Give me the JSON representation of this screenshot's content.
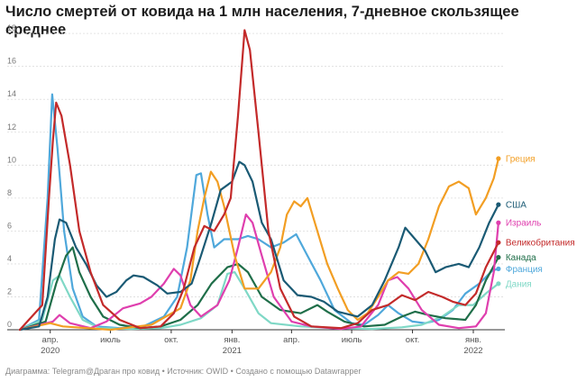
{
  "title": "Число смертей от ковида на 1 млн населения, 7-дневное скользящее среднее",
  "footer": "Диаграмма: Telegram@Драган про ковид • Источник: OWID • Создано с помощью Datawrapper",
  "chart_data": {
    "type": "line",
    "title": "Число смертей от ковида на 1 млн населения, 7-дневное скользящее среднее",
    "xlabel": "",
    "ylabel": "",
    "x_range": [
      "2020-02-15",
      "2022-02-15"
    ],
    "ylim": [
      0,
      18.5
    ],
    "y_ticks": [
      0,
      2,
      4,
      6,
      8,
      10,
      12,
      14,
      16,
      18
    ],
    "x_ticks": [
      {
        "date": "2020-04-01",
        "label": "апр.",
        "year": "2020"
      },
      {
        "date": "2020-07-01",
        "label": "июль",
        "year": ""
      },
      {
        "date": "2020-10-01",
        "label": "окт.",
        "year": ""
      },
      {
        "date": "2021-01-01",
        "label": "янв.",
        "year": "2021"
      },
      {
        "date": "2021-04-01",
        "label": "апр.",
        "year": ""
      },
      {
        "date": "2021-07-01",
        "label": "июль",
        "year": ""
      },
      {
        "date": "2021-10-01",
        "label": "окт.",
        "year": ""
      },
      {
        "date": "2022-01-01",
        "label": "янв.",
        "year": "2022"
      }
    ],
    "grid": true,
    "legend": "direct labels at line ends (right)",
    "series": [
      {
        "name": "Франция",
        "color": "#4fa8db",
        "end_label_value": 3.7,
        "points": [
          [
            "2020-02-15",
            0
          ],
          [
            "2020-03-15",
            0.6
          ],
          [
            "2020-03-28",
            8
          ],
          [
            "2020-04-04",
            14.3
          ],
          [
            "2020-04-12",
            11
          ],
          [
            "2020-04-22",
            6
          ],
          [
            "2020-05-05",
            2.5
          ],
          [
            "2020-05-20",
            0.8
          ],
          [
            "2020-06-10",
            0.2
          ],
          [
            "2020-07-15",
            0.1
          ],
          [
            "2020-08-20",
            0.2
          ],
          [
            "2020-09-20",
            0.8
          ],
          [
            "2020-10-10",
            2
          ],
          [
            "2020-10-25",
            5
          ],
          [
            "2020-11-08",
            9.4
          ],
          [
            "2020-11-15",
            9.5
          ],
          [
            "2020-11-25",
            7
          ],
          [
            "2020-12-05",
            5
          ],
          [
            "2020-12-20",
            5.5
          ],
          [
            "2021-01-10",
            5.5
          ],
          [
            "2021-01-25",
            5.7
          ],
          [
            "2021-02-10",
            5.5
          ],
          [
            "2021-03-01",
            5
          ],
          [
            "2021-03-20",
            5.3
          ],
          [
            "2021-04-08",
            5.8
          ],
          [
            "2021-04-25",
            4.5
          ],
          [
            "2021-05-15",
            3
          ],
          [
            "2021-06-05",
            1.2
          ],
          [
            "2021-07-01",
            0.4
          ],
          [
            "2021-07-20",
            0.3
          ],
          [
            "2021-08-10",
            0.9
          ],
          [
            "2021-08-25",
            1.5
          ],
          [
            "2021-09-10",
            1
          ],
          [
            "2021-10-01",
            0.5
          ],
          [
            "2021-10-20",
            0.4
          ],
          [
            "2021-11-10",
            0.6
          ],
          [
            "2021-12-01",
            1.2
          ],
          [
            "2021-12-20",
            2.2
          ],
          [
            "2022-01-10",
            2.8
          ],
          [
            "2022-01-30",
            3.6
          ],
          [
            "2022-02-08",
            3.7
          ]
        ]
      },
      {
        "name": "Дания",
        "color": "#7fd8c6",
        "end_label_value": 2.8,
        "points": [
          [
            "2020-02-15",
            0
          ],
          [
            "2020-03-20",
            0.6
          ],
          [
            "2020-04-05",
            3
          ],
          [
            "2020-04-15",
            3.3
          ],
          [
            "2020-05-01",
            2
          ],
          [
            "2020-05-20",
            0.6
          ],
          [
            "2020-06-15",
            0.1
          ],
          [
            "2020-08-01",
            0.05
          ],
          [
            "2020-09-15",
            0.1
          ],
          [
            "2020-10-15",
            0.3
          ],
          [
            "2020-11-15",
            0.7
          ],
          [
            "2020-12-10",
            1.5
          ],
          [
            "2020-12-25",
            3.4
          ],
          [
            "2021-01-05",
            3.5
          ],
          [
            "2021-01-20",
            2.5
          ],
          [
            "2021-02-10",
            1
          ],
          [
            "2021-03-01",
            0.4
          ],
          [
            "2021-04-15",
            0.2
          ],
          [
            "2021-06-01",
            0.1
          ],
          [
            "2021-08-01",
            0.05
          ],
          [
            "2021-09-15",
            0.15
          ],
          [
            "2021-10-15",
            0.3
          ],
          [
            "2021-11-15",
            0.8
          ],
          [
            "2021-12-10",
            1.5
          ],
          [
            "2022-01-01",
            1.5
          ],
          [
            "2022-01-20",
            2.2
          ],
          [
            "2022-02-08",
            2.8
          ]
        ]
      },
      {
        "name": "Канада",
        "color": "#1f6e49",
        "end_label_value": 4.4,
        "points": [
          [
            "2020-02-15",
            0
          ],
          [
            "2020-03-25",
            0.5
          ],
          [
            "2020-04-10",
            2.8
          ],
          [
            "2020-04-25",
            4.5
          ],
          [
            "2020-05-05",
            5
          ],
          [
            "2020-05-15",
            3.5
          ],
          [
            "2020-06-01",
            2
          ],
          [
            "2020-06-20",
            0.8
          ],
          [
            "2020-07-15",
            0.3
          ],
          [
            "2020-08-15",
            0.1
          ],
          [
            "2020-09-15",
            0.2
          ],
          [
            "2020-10-15",
            0.6
          ],
          [
            "2020-11-10",
            1.5
          ],
          [
            "2020-12-01",
            2.8
          ],
          [
            "2020-12-25",
            3.8
          ],
          [
            "2021-01-10",
            4
          ],
          [
            "2021-01-25",
            3.5
          ],
          [
            "2021-02-15",
            2
          ],
          [
            "2021-03-15",
            1.2
          ],
          [
            "2021-04-15",
            1
          ],
          [
            "2021-05-10",
            1.5
          ],
          [
            "2021-05-25",
            1.1
          ],
          [
            "2021-06-20",
            0.5
          ],
          [
            "2021-07-20",
            0.2
          ],
          [
            "2021-08-20",
            0.3
          ],
          [
            "2021-09-15",
            0.8
          ],
          [
            "2021-10-05",
            1.1
          ],
          [
            "2021-10-25",
            0.9
          ],
          [
            "2021-11-20",
            0.7
          ],
          [
            "2021-12-20",
            0.6
          ],
          [
            "2022-01-05",
            1.5
          ],
          [
            "2022-01-20",
            3
          ],
          [
            "2022-02-08",
            4.4
          ]
        ]
      },
      {
        "name": "Израиль",
        "color": "#df3fae",
        "end_label_value": 6.5,
        "points": [
          [
            "2020-02-15",
            0
          ],
          [
            "2020-04-05",
            0.5
          ],
          [
            "2020-04-15",
            0.9
          ],
          [
            "2020-05-01",
            0.4
          ],
          [
            "2020-06-01",
            0.1
          ],
          [
            "2020-06-25",
            0.5
          ],
          [
            "2020-07-20",
            1.3
          ],
          [
            "2020-08-15",
            1.6
          ],
          [
            "2020-09-01",
            2
          ],
          [
            "2020-09-20",
            2.8
          ],
          [
            "2020-10-05",
            3.7
          ],
          [
            "2020-10-15",
            3.3
          ],
          [
            "2020-10-30",
            1.5
          ],
          [
            "2020-11-15",
            0.8
          ],
          [
            "2020-12-10",
            1.5
          ],
          [
            "2020-12-28",
            3
          ],
          [
            "2021-01-10",
            5
          ],
          [
            "2021-01-22",
            7
          ],
          [
            "2021-02-01",
            6.5
          ],
          [
            "2021-02-15",
            4.5
          ],
          [
            "2021-03-05",
            2
          ],
          [
            "2021-04-01",
            0.5
          ],
          [
            "2021-05-01",
            0.2
          ],
          [
            "2021-06-15",
            0.05
          ],
          [
            "2021-07-15",
            0.2
          ],
          [
            "2021-08-10",
            1.5
          ],
          [
            "2021-08-25",
            3
          ],
          [
            "2021-09-08",
            3.2
          ],
          [
            "2021-09-25",
            2.5
          ],
          [
            "2021-10-15",
            1.2
          ],
          [
            "2021-11-10",
            0.3
          ],
          [
            "2021-12-10",
            0.1
          ],
          [
            "2022-01-05",
            0.2
          ],
          [
            "2022-01-20",
            1
          ],
          [
            "2022-02-01",
            3.5
          ],
          [
            "2022-02-08",
            6.5
          ]
        ]
      },
      {
        "name": "Греция",
        "color": "#f29e23",
        "end_label_value": 10.4,
        "points": [
          [
            "2020-02-15",
            0
          ],
          [
            "2020-04-01",
            0.4
          ],
          [
            "2020-04-20",
            0.2
          ],
          [
            "2020-07-01",
            0
          ],
          [
            "2020-09-01",
            0.3
          ],
          [
            "2020-10-15",
            1.3
          ],
          [
            "2020-10-30",
            3
          ],
          [
            "2020-11-10",
            6
          ],
          [
            "2020-11-20",
            8
          ],
          [
            "2020-11-30",
            9.6
          ],
          [
            "2020-12-10",
            9
          ],
          [
            "2020-12-20",
            7.5
          ],
          [
            "2021-01-05",
            4.5
          ],
          [
            "2021-01-20",
            2.5
          ],
          [
            "2021-02-10",
            2.5
          ],
          [
            "2021-03-01",
            3.5
          ],
          [
            "2021-03-15",
            5
          ],
          [
            "2021-03-25",
            7
          ],
          [
            "2021-04-05",
            7.8
          ],
          [
            "2021-04-15",
            7.5
          ],
          [
            "2021-04-25",
            8
          ],
          [
            "2021-05-10",
            6
          ],
          [
            "2021-05-25",
            4
          ],
          [
            "2021-06-10",
            2.5
          ],
          [
            "2021-06-25",
            1.2
          ],
          [
            "2021-07-10",
            0.6
          ],
          [
            "2021-07-25",
            1
          ],
          [
            "2021-08-10",
            2
          ],
          [
            "2021-08-25",
            3
          ],
          [
            "2021-09-10",
            3.5
          ],
          [
            "2021-09-25",
            3.4
          ],
          [
            "2021-10-10",
            4
          ],
          [
            "2021-10-25",
            5.5
          ],
          [
            "2021-11-10",
            7.5
          ],
          [
            "2021-11-25",
            8.7
          ],
          [
            "2021-12-10",
            9
          ],
          [
            "2021-12-25",
            8.6
          ],
          [
            "2022-01-05",
            7
          ],
          [
            "2022-01-20",
            8
          ],
          [
            "2022-02-01",
            9.2
          ],
          [
            "2022-02-08",
            10.4
          ]
        ]
      },
      {
        "name": "США",
        "color": "#1a5a74",
        "end_label_value": 7.6,
        "points": [
          [
            "2020-02-15",
            0
          ],
          [
            "2020-03-15",
            0.2
          ],
          [
            "2020-03-28",
            2
          ],
          [
            "2020-04-08",
            5.5
          ],
          [
            "2020-04-15",
            6.7
          ],
          [
            "2020-04-25",
            6.5
          ],
          [
            "2020-05-10",
            5
          ],
          [
            "2020-05-25",
            4
          ],
          [
            "2020-06-10",
            2.7
          ],
          [
            "2020-06-25",
            2
          ],
          [
            "2020-07-10",
            2.3
          ],
          [
            "2020-07-25",
            3
          ],
          [
            "2020-08-05",
            3.3
          ],
          [
            "2020-08-20",
            3.2
          ],
          [
            "2020-09-10",
            2.7
          ],
          [
            "2020-09-25",
            2.2
          ],
          [
            "2020-10-15",
            2.3
          ],
          [
            "2020-11-01",
            2.8
          ],
          [
            "2020-11-15",
            4.5
          ],
          [
            "2020-12-01",
            6.5
          ],
          [
            "2020-12-15",
            8.5
          ],
          [
            "2021-01-01",
            9
          ],
          [
            "2021-01-12",
            10.2
          ],
          [
            "2021-01-20",
            10
          ],
          [
            "2021-02-01",
            9
          ],
          [
            "2021-02-15",
            6.5
          ],
          [
            "2021-03-01",
            5.5
          ],
          [
            "2021-03-20",
            3
          ],
          [
            "2021-04-10",
            2.1
          ],
          [
            "2021-05-01",
            2
          ],
          [
            "2021-05-20",
            1.7
          ],
          [
            "2021-06-10",
            1.1
          ],
          [
            "2021-07-10",
            0.8
          ],
          [
            "2021-08-01",
            1.5
          ],
          [
            "2021-08-20",
            3
          ],
          [
            "2021-09-10",
            5
          ],
          [
            "2021-09-20",
            6.2
          ],
          [
            "2021-10-05",
            5.5
          ],
          [
            "2021-10-20",
            4.8
          ],
          [
            "2021-11-05",
            3.5
          ],
          [
            "2021-11-20",
            3.8
          ],
          [
            "2021-12-10",
            4
          ],
          [
            "2021-12-25",
            3.8
          ],
          [
            "2022-01-10",
            5
          ],
          [
            "2022-01-25",
            6.5
          ],
          [
            "2022-02-08",
            7.6
          ]
        ]
      },
      {
        "name": "Великобритания",
        "color": "#c32a2a",
        "end_label_value": 5.3,
        "points": [
          [
            "2020-02-15",
            0
          ],
          [
            "2020-03-20",
            1.5
          ],
          [
            "2020-03-30",
            8
          ],
          [
            "2020-04-05",
            11.5
          ],
          [
            "2020-04-10",
            13.8
          ],
          [
            "2020-04-18",
            13
          ],
          [
            "2020-05-01",
            10
          ],
          [
            "2020-05-15",
            6
          ],
          [
            "2020-06-01",
            3.5
          ],
          [
            "2020-06-20",
            1.5
          ],
          [
            "2020-07-15",
            0.6
          ],
          [
            "2020-08-15",
            0.1
          ],
          [
            "2020-09-15",
            0.2
          ],
          [
            "2020-10-05",
            1
          ],
          [
            "2020-10-20",
            2.5
          ],
          [
            "2020-11-05",
            5
          ],
          [
            "2020-11-20",
            6.3
          ],
          [
            "2020-12-05",
            6
          ],
          [
            "2020-12-20",
            7
          ],
          [
            "2020-12-30",
            8
          ],
          [
            "2021-01-10",
            13
          ],
          [
            "2021-01-20",
            18.2
          ],
          [
            "2021-01-28",
            17
          ],
          [
            "2021-02-10",
            12
          ],
          [
            "2021-02-25",
            6
          ],
          [
            "2021-03-15",
            2.5
          ],
          [
            "2021-04-05",
            0.8
          ],
          [
            "2021-05-01",
            0.2
          ],
          [
            "2021-06-15",
            0.1
          ],
          [
            "2021-07-10",
            0.4
          ],
          [
            "2021-08-01",
            1.2
          ],
          [
            "2021-08-25",
            1.5
          ],
          [
            "2021-09-15",
            2.1
          ],
          [
            "2021-10-05",
            1.8
          ],
          [
            "2021-10-25",
            2.3
          ],
          [
            "2021-11-15",
            2
          ],
          [
            "2021-12-01",
            1.7
          ],
          [
            "2021-12-20",
            1.5
          ],
          [
            "2022-01-05",
            2.2
          ],
          [
            "2022-01-20",
            3.8
          ],
          [
            "2022-02-08",
            5.3
          ]
        ]
      }
    ]
  }
}
